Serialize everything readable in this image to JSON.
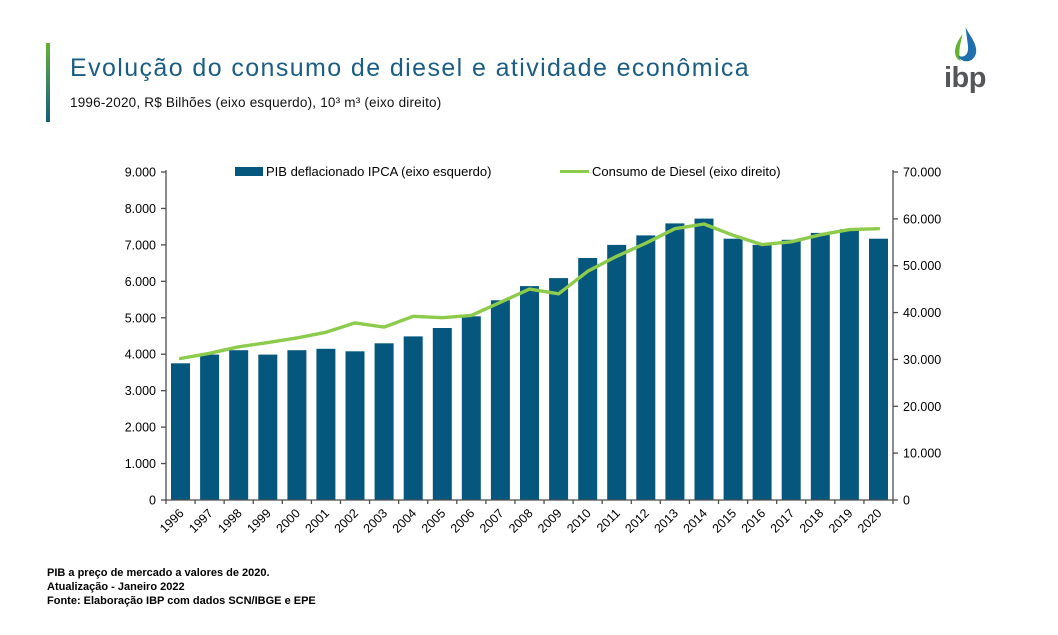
{
  "header": {
    "title": "Evolução do consumo de diesel e atividade econômica",
    "subtitle": "1996-2020, R$ Bilhões (eixo esquerdo), 10³ m³ (eixo direito)"
  },
  "logo": {
    "text": "ibp"
  },
  "footer": {
    "note1": "PIB a preço de mercado a valores de 2020.",
    "note2": "Atualização - Janeiro 2022",
    "source": "Fonte: Elaboração IBP com dados SCN/IBGE e EPE"
  },
  "colors": {
    "title": "#1b5e85",
    "bar": "#05577d",
    "line": "#8dcb4c",
    "axis": "#4d4d4d",
    "accent_green": "#6ab02e",
    "accent_blue": "#155e7e",
    "logo_green": "#62b32e",
    "logo_blue": "#1f6fae",
    "logo_text": "#55565a"
  },
  "chart_data": {
    "type": "bar",
    "categories": [
      "1996",
      "1997",
      "1998",
      "1999",
      "2000",
      "2001",
      "2002",
      "2003",
      "2004",
      "2005",
      "2006",
      "2007",
      "2008",
      "2009",
      "2010",
      "2011",
      "2012",
      "2013",
      "2014",
      "2015",
      "2016",
      "2017",
      "2018",
      "2019",
      "2020"
    ],
    "series": [
      {
        "name": "PIB deflacionado IPCA (eixo esquerdo)",
        "type": "bar",
        "axis": "left",
        "color": "#05577d",
        "values": [
          3750,
          3990,
          4110,
          3990,
          4110,
          4150,
          4080,
          4300,
          4490,
          4720,
          5040,
          5480,
          5870,
          6090,
          6640,
          7000,
          7260,
          7590,
          7720,
          7170,
          7000,
          7140,
          7330,
          7430,
          7170
        ]
      },
      {
        "name": "Consumo de Diesel (eixo direito)",
        "type": "line",
        "axis": "right",
        "color": "#8dcb4c",
        "values": [
          30200,
          31300,
          32700,
          33600,
          34600,
          35800,
          37800,
          36900,
          39200,
          38900,
          39400,
          42200,
          45000,
          44000,
          48800,
          52000,
          54800,
          57900,
          58900,
          56500,
          54500,
          55100,
          56600,
          57700,
          57900
        ]
      }
    ],
    "left_axis": {
      "min": 0,
      "max": 9000,
      "step": 1000,
      "tick_labels": [
        "0",
        "1.000",
        "2.000",
        "3.000",
        "4.000",
        "5.000",
        "6.000",
        "7.000",
        "8.000",
        "9.000"
      ]
    },
    "right_axis": {
      "min": 0,
      "max": 70000,
      "step": 10000,
      "tick_labels": [
        "0",
        "10.000",
        "20.000",
        "30.000",
        "40.000",
        "50.000",
        "60.000",
        "70.000"
      ]
    },
    "title": "Evolução do consumo de diesel e atividade econômica",
    "legend_position": "top",
    "grid": false
  }
}
